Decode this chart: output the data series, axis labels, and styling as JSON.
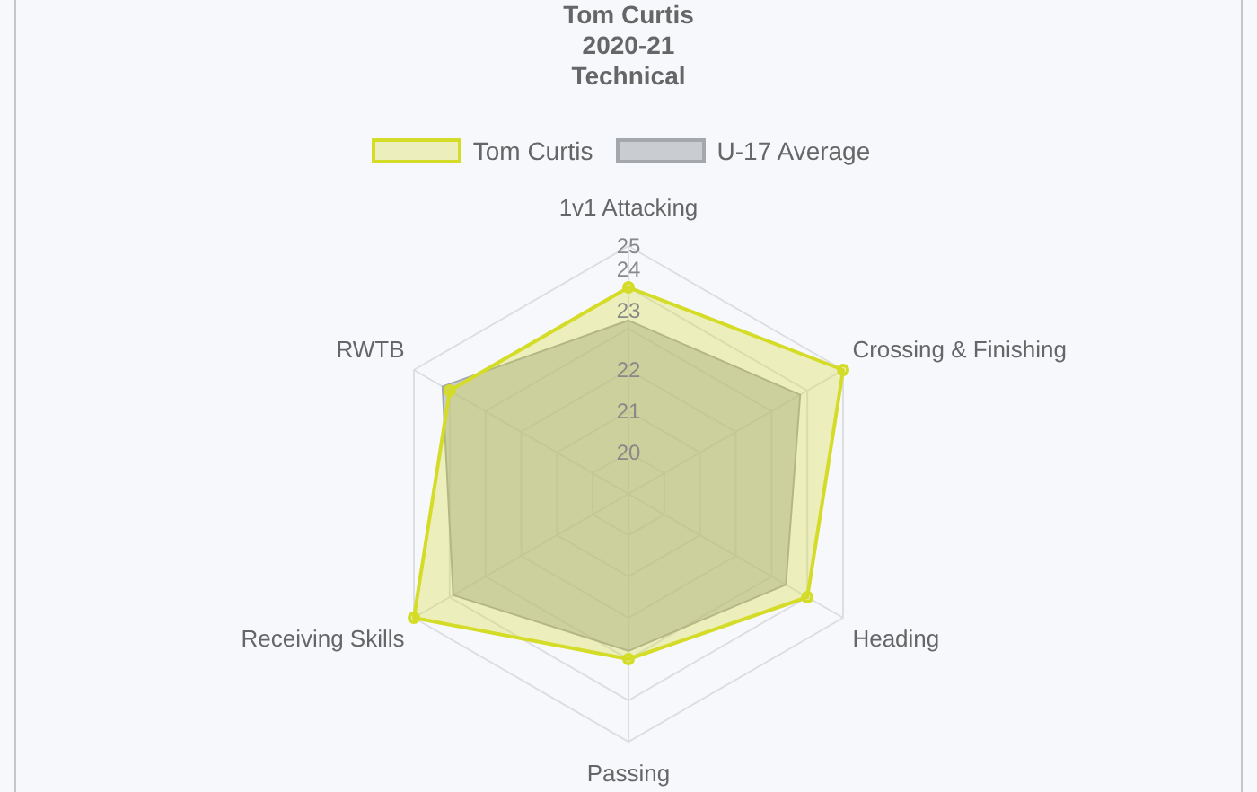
{
  "chart_data": {
    "type": "radar",
    "title": "Tom Curtis\n2020-21\nTechnical",
    "categories": [
      "1v1 Attacking",
      "Crossing & Finishing",
      "Heading",
      "Passing",
      "Receiving Skills",
      "RWTB"
    ],
    "series": [
      {
        "name": "Tom Curtis",
        "color": "#d4dc28",
        "marker": "circle",
        "values": [
          24,
          25,
          24,
          23,
          25,
          24
        ]
      },
      {
        "name": "U-17 Average",
        "color": "#a4a8ac",
        "marker": "none",
        "values": [
          23.2,
          23.8,
          23.4,
          22.8,
          23.9,
          24.2
        ]
      }
    ],
    "ylim": [
      19,
      25
    ],
    "yticks": [
      20,
      21,
      22,
      23,
      24,
      25
    ],
    "grid": true,
    "legend": "top"
  }
}
